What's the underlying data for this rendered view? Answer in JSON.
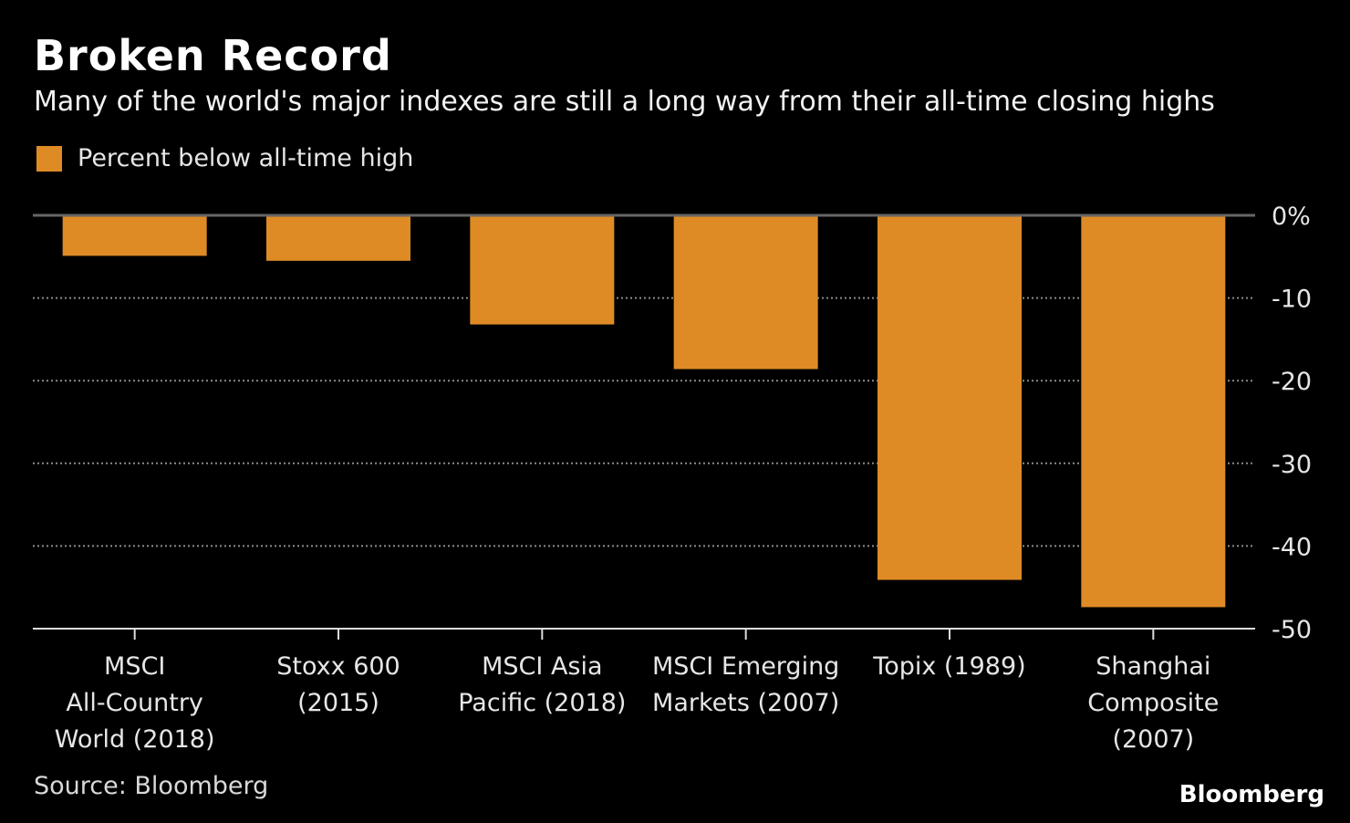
{
  "chart_data": {
    "type": "bar",
    "title": "Broken Record",
    "subtitle": "Many of the world's major indexes are still a long way from their all-time closing highs",
    "legend": [
      "Percent below all-time high"
    ],
    "legend_placement": "top-left",
    "categories": [
      [
        "MSCI",
        "All-Country",
        "World (2018)"
      ],
      [
        "Stoxx 600",
        "(2015)"
      ],
      [
        "MSCI Asia",
        "Pacific (2018)"
      ],
      [
        "MSCI Emerging",
        "Markets (2007)"
      ],
      [
        "Topix (1989)"
      ],
      [
        "Shanghai",
        "Composite",
        "(2007)"
      ]
    ],
    "values": [
      -4.9,
      -5.5,
      -13.2,
      -18.6,
      -44.1,
      -47.4
    ],
    "ylim": [
      -50,
      0
    ],
    "yticks": [
      0,
      -10,
      -20,
      -30,
      -40,
      -50
    ],
    "ytick_labels": [
      "0%",
      "-10",
      "-20",
      "-30",
      "-40",
      "-50"
    ],
    "grid": true,
    "bar_color": "#de8b26",
    "source": "Source: Bloomberg",
    "brand": "Bloomberg"
  }
}
